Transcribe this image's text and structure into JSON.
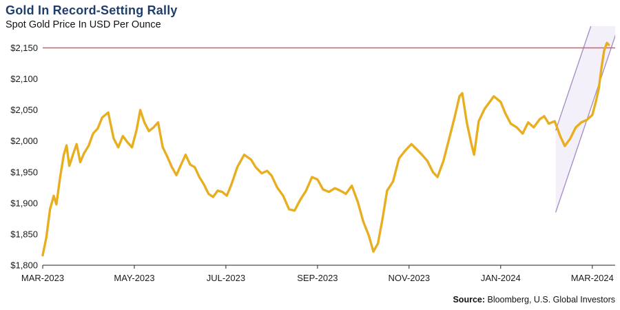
{
  "header": {
    "title": "Gold In Record-Setting Rally",
    "subtitle": "Spot Gold Price In USD Per Ounce"
  },
  "source": {
    "label": "Source:",
    "text": " Bloomberg, U.S. Global Investors"
  },
  "chart_data": {
    "type": "line",
    "title": "Gold In Record-Setting Rally",
    "subtitle": "Spot Gold Price In USD Per Ounce",
    "x_unit": "months since 2023-03-01",
    "xlim": [
      0,
      12.5
    ],
    "ylim": [
      1800,
      2185
    ],
    "grid": false,
    "legend": false,
    "y_ticks": [
      {
        "v": 1800,
        "label": "$1,800"
      },
      {
        "v": 1850,
        "label": "$1,850"
      },
      {
        "v": 1900,
        "label": "$1,900"
      },
      {
        "v": 1950,
        "label": "$1,950"
      },
      {
        "v": 2000,
        "label": "$2,000"
      },
      {
        "v": 2050,
        "label": "$2,050"
      },
      {
        "v": 2100,
        "label": "$2,100"
      },
      {
        "v": 2150,
        "label": "$2,150"
      }
    ],
    "x_ticks": [
      {
        "m": 0,
        "label": "MAR-2023"
      },
      {
        "m": 2,
        "label": "MAY-2023"
      },
      {
        "m": 4,
        "label": "JUL-2023"
      },
      {
        "m": 6,
        "label": "SEP-2023"
      },
      {
        "m": 8,
        "label": "NOV-2023"
      },
      {
        "m": 10,
        "label": "JAN-2024"
      },
      {
        "m": 12,
        "label": "MAR-2024"
      }
    ],
    "threshold_line": {
      "value": 2150,
      "color": "#DC5666"
    },
    "trend_channel": {
      "x0": 11.2,
      "x1": 12.55,
      "lower_y0": 1885,
      "lower_y1": 2180,
      "width": 132,
      "stroke": "#A88FC5",
      "fill": "#EFEAF6",
      "fill_opacity": 0.7
    },
    "series": [
      {
        "name": "Spot Gold Price (USD/oz)",
        "color": "#E7AE1F",
        "points": [
          [
            0.0,
            1816
          ],
          [
            0.08,
            1845
          ],
          [
            0.16,
            1890
          ],
          [
            0.24,
            1912
          ],
          [
            0.3,
            1898
          ],
          [
            0.38,
            1942
          ],
          [
            0.46,
            1978
          ],
          [
            0.52,
            1993
          ],
          [
            0.58,
            1960
          ],
          [
            0.66,
            1978
          ],
          [
            0.74,
            1995
          ],
          [
            0.82,
            1966
          ],
          [
            0.9,
            1980
          ],
          [
            1.0,
            1992
          ],
          [
            1.1,
            2012
          ],
          [
            1.2,
            2020
          ],
          [
            1.3,
            2038
          ],
          [
            1.43,
            2046
          ],
          [
            1.55,
            2004
          ],
          [
            1.65,
            1990
          ],
          [
            1.75,
            2008
          ],
          [
            1.85,
            1998
          ],
          [
            1.95,
            1990
          ],
          [
            2.05,
            2018
          ],
          [
            2.13,
            2050
          ],
          [
            2.22,
            2030
          ],
          [
            2.32,
            2016
          ],
          [
            2.42,
            2022
          ],
          [
            2.52,
            2030
          ],
          [
            2.62,
            1990
          ],
          [
            2.72,
            1975
          ],
          [
            2.82,
            1958
          ],
          [
            2.92,
            1945
          ],
          [
            3.02,
            1962
          ],
          [
            3.12,
            1978
          ],
          [
            3.22,
            1962
          ],
          [
            3.32,
            1958
          ],
          [
            3.42,
            1942
          ],
          [
            3.52,
            1930
          ],
          [
            3.62,
            1915
          ],
          [
            3.72,
            1910
          ],
          [
            3.82,
            1920
          ],
          [
            3.92,
            1918
          ],
          [
            4.02,
            1912
          ],
          [
            4.12,
            1930
          ],
          [
            4.25,
            1958
          ],
          [
            4.4,
            1978
          ],
          [
            4.55,
            1970
          ],
          [
            4.65,
            1958
          ],
          [
            4.78,
            1948
          ],
          [
            4.9,
            1952
          ],
          [
            5.0,
            1944
          ],
          [
            5.12,
            1925
          ],
          [
            5.25,
            1912
          ],
          [
            5.38,
            1890
          ],
          [
            5.5,
            1888
          ],
          [
            5.62,
            1905
          ],
          [
            5.75,
            1920
          ],
          [
            5.88,
            1942
          ],
          [
            6.0,
            1938
          ],
          [
            6.12,
            1922
          ],
          [
            6.25,
            1918
          ],
          [
            6.38,
            1924
          ],
          [
            6.5,
            1920
          ],
          [
            6.62,
            1915
          ],
          [
            6.75,
            1928
          ],
          [
            6.88,
            1902
          ],
          [
            7.0,
            1870
          ],
          [
            7.12,
            1848
          ],
          [
            7.22,
            1822
          ],
          [
            7.32,
            1835
          ],
          [
            7.42,
            1875
          ],
          [
            7.52,
            1920
          ],
          [
            7.65,
            1935
          ],
          [
            7.78,
            1972
          ],
          [
            7.92,
            1985
          ],
          [
            8.05,
            1995
          ],
          [
            8.15,
            1988
          ],
          [
            8.28,
            1978
          ],
          [
            8.4,
            1968
          ],
          [
            8.52,
            1950
          ],
          [
            8.62,
            1942
          ],
          [
            8.75,
            1968
          ],
          [
            8.88,
            2005
          ],
          [
            9.0,
            2040
          ],
          [
            9.1,
            2072
          ],
          [
            9.16,
            2077
          ],
          [
            9.26,
            2030
          ],
          [
            9.36,
            1995
          ],
          [
            9.42,
            1978
          ],
          [
            9.52,
            2032
          ],
          [
            9.65,
            2052
          ],
          [
            9.78,
            2065
          ],
          [
            9.85,
            2072
          ],
          [
            10.0,
            2063
          ],
          [
            10.1,
            2045
          ],
          [
            10.22,
            2028
          ],
          [
            10.35,
            2022
          ],
          [
            10.48,
            2012
          ],
          [
            10.6,
            2030
          ],
          [
            10.72,
            2022
          ],
          [
            10.85,
            2035
          ],
          [
            10.95,
            2040
          ],
          [
            11.05,
            2028
          ],
          [
            11.18,
            2032
          ],
          [
            11.3,
            2008
          ],
          [
            11.4,
            1992
          ],
          [
            11.52,
            2004
          ],
          [
            11.64,
            2022
          ],
          [
            11.76,
            2030
          ],
          [
            11.88,
            2034
          ],
          [
            12.0,
            2042
          ],
          [
            12.08,
            2064
          ],
          [
            12.14,
            2084
          ],
          [
            12.2,
            2118
          ],
          [
            12.26,
            2146
          ],
          [
            12.32,
            2158
          ],
          [
            12.36,
            2155
          ]
        ]
      }
    ]
  }
}
